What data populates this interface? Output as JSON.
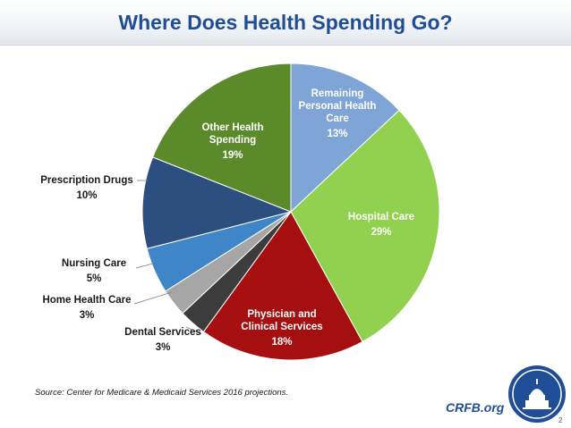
{
  "slide": {
    "title": "Where Does Health Spending Go?",
    "source": "Source: Center for Medicare & Medicaid Services 2016 projections.",
    "brand": "CRFB.org",
    "page_number": "2"
  },
  "chart_data": {
    "type": "pie",
    "title": "",
    "slices": [
      {
        "label": [
          "Remaining",
          "Personal Health",
          "Care"
        ],
        "value": 13,
        "value_label": "13%",
        "color": "#7fa4d6",
        "text_color": "#ffffff",
        "label_position": "inside"
      },
      {
        "label": [
          "Hospital Care"
        ],
        "value": 29,
        "value_label": "29%",
        "color": "#92d050",
        "text_color": "#ffffff",
        "label_position": "inside"
      },
      {
        "label": [
          "Physician and",
          "Clinical Services"
        ],
        "value": 18,
        "value_label": "18%",
        "color": "#a50f0f",
        "text_color": "#ffffff",
        "label_position": "inside"
      },
      {
        "label": [
          "Dental Services"
        ],
        "value": 3,
        "value_label": "3%",
        "color": "#3c3c3c",
        "text_color": "#1a1a1a",
        "label_position": "outside"
      },
      {
        "label": [
          "Home Health Care"
        ],
        "value": 3,
        "value_label": "3%",
        "color": "#a6a6a6",
        "text_color": "#1a1a1a",
        "label_position": "outside"
      },
      {
        "label": [
          "Nursing Care"
        ],
        "value": 5,
        "value_label": "5%",
        "color": "#3f86c8",
        "text_color": "#1a1a1a",
        "label_position": "outside"
      },
      {
        "label": [
          "Prescription Drugs"
        ],
        "value": 10,
        "value_label": "10%",
        "color": "#2d4f80",
        "text_color": "#1a1a1a",
        "label_position": "outside"
      },
      {
        "label": [
          "Other Health",
          "Spending"
        ],
        "value": 19,
        "value_label": "19%",
        "color": "#5b8a2a",
        "text_color": "#ffffff",
        "label_position": "inside"
      }
    ]
  }
}
